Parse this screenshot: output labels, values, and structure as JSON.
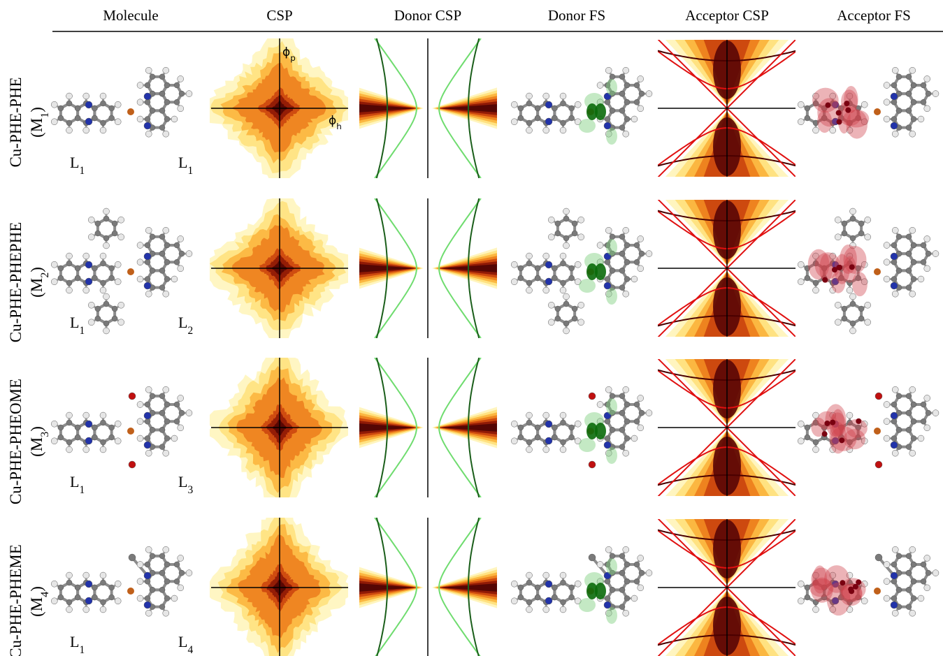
{
  "header": {
    "columns": [
      "Molecule",
      "CSP",
      "Donor CSP",
      "Donor FS",
      "Acceptor CSP",
      "Acceptor FS"
    ]
  },
  "rows": [
    {
      "name": "Cu-PHE-PHE",
      "id": {
        "before": "(M",
        "sub": "1",
        "after": ")"
      },
      "ligands": [
        {
          "base": "L",
          "sub": "1"
        },
        {
          "base": "L",
          "sub": "1"
        }
      ]
    },
    {
      "name": "Cu-PHE-PHEPHE",
      "id": {
        "before": "(M",
        "sub": "2",
        "after": ")"
      },
      "ligands": [
        {
          "base": "L",
          "sub": "1"
        },
        {
          "base": "L",
          "sub": "2"
        }
      ]
    },
    {
      "name": "Cu-PHE-PHEOME",
      "id": {
        "before": "(M",
        "sub": "3",
        "after": ")"
      },
      "ligands": [
        {
          "base": "L",
          "sub": "1"
        },
        {
          "base": "L",
          "sub": "3"
        }
      ]
    },
    {
      "name": "Cu-PHE-PHEME",
      "id": {
        "before": "(M",
        "sub": "4",
        "after": ")"
      },
      "ligands": [
        {
          "base": "L",
          "sub": "1"
        },
        {
          "base": "L",
          "sub": "4"
        }
      ]
    }
  ],
  "axis_labels": {
    "vertical": {
      "base": "ϕ",
      "sub": "p"
    },
    "horizontal": {
      "base": "ϕ",
      "sub": "h"
    }
  }
}
